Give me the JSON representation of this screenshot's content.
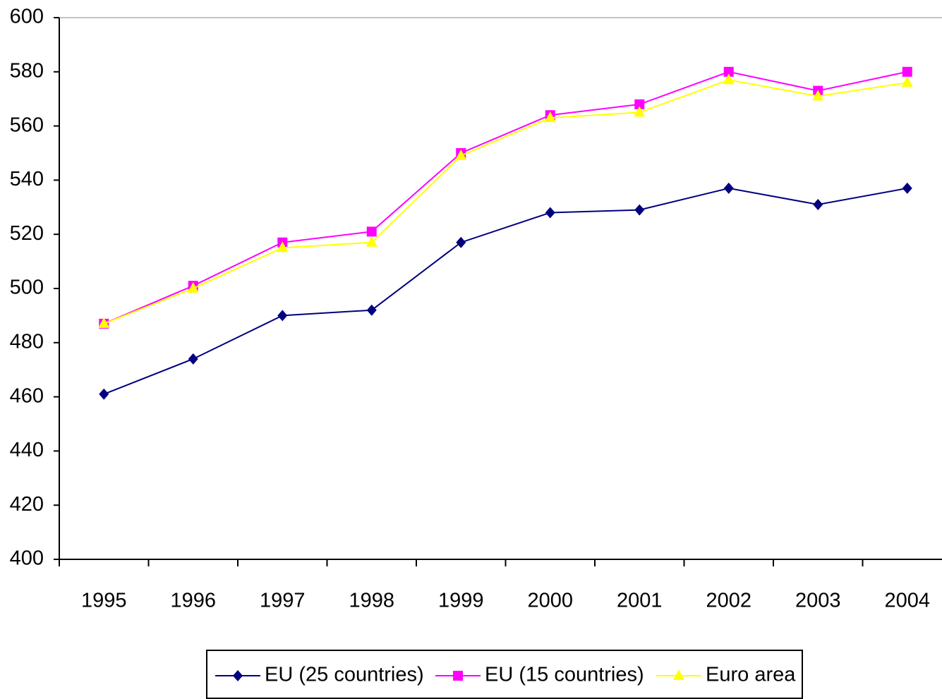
{
  "chart_data": {
    "type": "line",
    "categories": [
      "1995",
      "1996",
      "1997",
      "1998",
      "1999",
      "2000",
      "2001",
      "2002",
      "2003",
      "2004"
    ],
    "series": [
      {
        "name": "EU (25 countries)",
        "color": "#000080",
        "marker": "diamond",
        "values": [
          461,
          474,
          490,
          492,
          517,
          528,
          529,
          537,
          531,
          537
        ]
      },
      {
        "name": "EU (15 countries)",
        "color": "#ff00ff",
        "marker": "square",
        "values": [
          487,
          501,
          517,
          521,
          550,
          564,
          568,
          580,
          573,
          580
        ]
      },
      {
        "name": "Euro area",
        "color": "#ffff00",
        "marker": "triangle",
        "values": [
          487,
          500,
          515,
          517,
          549,
          563,
          565,
          577,
          571,
          576
        ]
      }
    ],
    "ylim": [
      400,
      600
    ],
    "yticks": [
      400,
      420,
      440,
      460,
      480,
      500,
      520,
      540,
      560,
      580,
      600
    ],
    "grid": false,
    "legend": "bottom"
  }
}
